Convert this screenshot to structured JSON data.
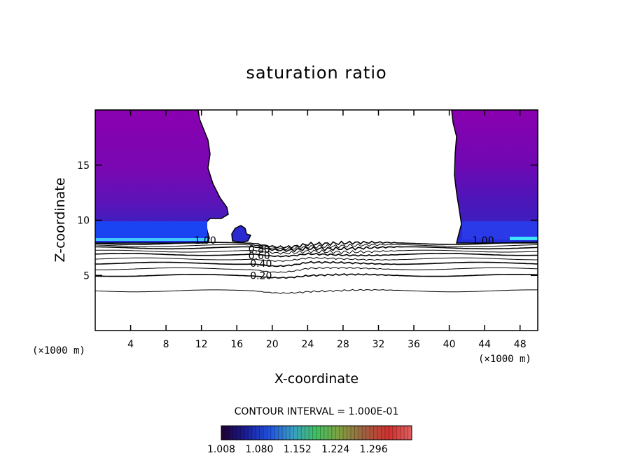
{
  "chart_data": {
    "type": "contour",
    "title": "saturation ratio",
    "xlabel": "X-coordinate",
    "ylabel": "Z-coordinate",
    "x_unit": "(×1000 m)",
    "xlim": [
      0,
      50
    ],
    "ylim": [
      0,
      20
    ],
    "x_ticks": [
      4,
      8,
      12,
      16,
      20,
      24,
      28,
      32,
      36,
      40,
      44,
      48
    ],
    "y_ticks": [
      5,
      10,
      15
    ],
    "contour_interval_text": "CONTOUR INTERVAL = 1.000E-01",
    "contour_labels": [
      {
        "text": "1.00",
        "x": 11.2,
        "z": 8.2
      },
      {
        "text": "1.00",
        "x": 42.6,
        "z": 8.2
      },
      {
        "text": "0.80",
        "x": 17.3,
        "z": 7.4
      },
      {
        "text": "0.60",
        "x": 17.3,
        "z": 6.8
      },
      {
        "text": "0.40",
        "x": 17.5,
        "z": 6.1
      },
      {
        "text": "0.20",
        "x": 17.5,
        "z": 5.0
      }
    ],
    "contour_levels": [
      {
        "value": 0.1,
        "z": 3.6
      },
      {
        "value": 0.2,
        "z": 5.0
      },
      {
        "value": 0.3,
        "z": 5.6
      },
      {
        "value": 0.4,
        "z": 6.1
      },
      {
        "value": 0.5,
        "z": 6.5
      },
      {
        "value": 0.6,
        "z": 6.9
      },
      {
        "value": 0.7,
        "z": 7.2
      },
      {
        "value": 0.8,
        "z": 7.5
      },
      {
        "value": 0.9,
        "z": 7.7
      },
      {
        "value": 1.0,
        "z": 7.9
      }
    ],
    "colorbar": {
      "ticks": [
        "1.008",
        "1.080",
        "1.152",
        "1.224",
        "1.296"
      ],
      "range": [
        1.008,
        1.368
      ]
    },
    "colors": {
      "fill_main": "#8000b0",
      "fill_mid": "#5a10b8",
      "fill_dark": "#3a1ab8",
      "fill_band": "#1a40f0",
      "fill_cyan": "#20c8ff"
    }
  }
}
